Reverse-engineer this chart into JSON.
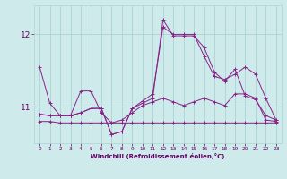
{
  "bg_color": "#ceeaea",
  "line_color": "#882288",
  "grid_color": "#aad4d4",
  "xlabel": "Windchill (Refroidissement éolien,°C)",
  "xlabel_color": "#660066",
  "tick_color": "#660066",
  "xlim": [
    -0.5,
    23.5
  ],
  "ylim": [
    10.5,
    12.4
  ],
  "yticks": [
    11,
    12
  ],
  "xticks": [
    0,
    1,
    2,
    3,
    4,
    5,
    6,
    7,
    8,
    9,
    10,
    11,
    12,
    13,
    14,
    15,
    16,
    17,
    18,
    19,
    20,
    21,
    22,
    23
  ],
  "series": [
    [
      10.8,
      10.8,
      10.78,
      10.78,
      10.78,
      10.78,
      10.78,
      10.78,
      10.78,
      10.78,
      10.78,
      10.78,
      10.78,
      10.78,
      10.78,
      10.78,
      10.78,
      10.78,
      10.78,
      10.78,
      10.78,
      10.78,
      10.78,
      10.78
    ],
    [
      11.55,
      11.05,
      10.88,
      10.88,
      11.22,
      11.22,
      10.92,
      10.78,
      10.82,
      10.92,
      11.02,
      11.07,
      11.12,
      11.07,
      11.02,
      11.07,
      11.12,
      11.07,
      11.02,
      11.18,
      11.18,
      11.12,
      10.82,
      10.8
    ],
    [
      10.9,
      10.88,
      10.88,
      10.88,
      10.92,
      10.98,
      10.98,
      10.62,
      10.66,
      10.98,
      11.05,
      11.12,
      12.2,
      11.98,
      11.98,
      11.98,
      11.82,
      11.48,
      11.35,
      11.52,
      11.15,
      11.1,
      10.88,
      10.82
    ],
    [
      10.9,
      10.88,
      10.88,
      10.88,
      10.92,
      10.98,
      10.98,
      10.62,
      10.66,
      10.98,
      11.08,
      11.18,
      12.1,
      12.0,
      12.0,
      12.0,
      11.7,
      11.42,
      11.38,
      11.45,
      11.55,
      11.45,
      11.12,
      10.82
    ]
  ]
}
